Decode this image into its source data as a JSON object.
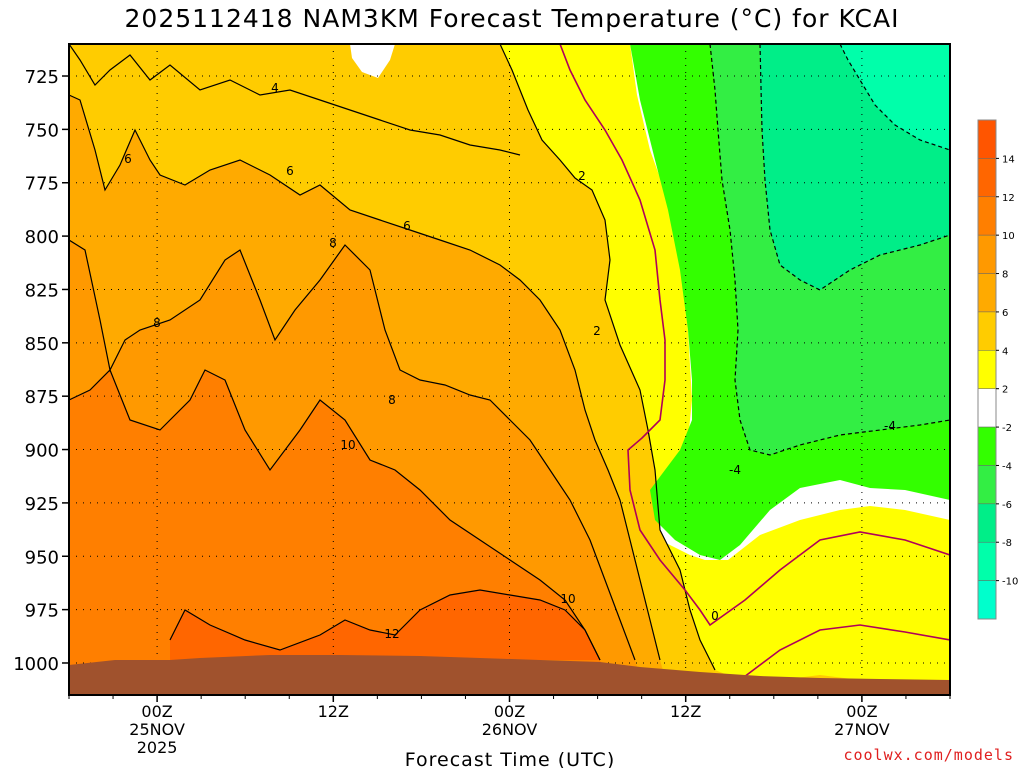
{
  "title": "2025112418 NAM3KM Forecast Temperature (°C) for KCAI",
  "watermark": "coolwx.com/models",
  "colors": {
    "t_ge_12": "#ff6600",
    "t_10_12": "#ff7f00",
    "t_8_10": "#ff9900",
    "t_6_8": "#ffaa00",
    "t_4_6": "#ffcc00",
    "t_2_4": "#ffff00",
    "t_m2_2": "#ffffff",
    "t_m4_m2": "#33ff00",
    "t_m6_m4": "#33ee44",
    "t_m8_m6": "#00ee88",
    "t_m10_m8": "#00ffaa",
    "terrain": "#a0522d",
    "zero_line": "#b0005a"
  },
  "chart_data": {
    "type": "heatmap",
    "title": "2025112418 NAM3KM Forecast Temperature (°C) for KCAI",
    "xlabel": "Forecast Time (UTC)",
    "ylabel": "",
    "y_axis_inverted": true,
    "ylim": [
      1015,
      710
    ],
    "y_ticks": [
      "725",
      "750",
      "775",
      "800",
      "825",
      "850",
      "875",
      "900",
      "925",
      "950",
      "975",
      "1000"
    ],
    "x_ticks": [
      {
        "hour": 24,
        "line1": "00Z",
        "line2": "25NOV",
        "line3": "2025"
      },
      {
        "hour": 36,
        "line1": "12Z",
        "line2": "",
        "line3": ""
      },
      {
        "hour": 48,
        "line1": "00Z",
        "line2": "26NOV",
        "line3": ""
      },
      {
        "hour": 60,
        "line1": "12Z",
        "line2": "",
        "line3": ""
      },
      {
        "hour": 72,
        "line1": "00Z",
        "line2": "27NOV",
        "line3": ""
      }
    ],
    "xlim": [
      18,
      78
    ],
    "grid": true,
    "colorbar": {
      "labels": [
        "14",
        "12",
        "10",
        "8",
        "6",
        "4",
        "2",
        "-2",
        "-4",
        "-6",
        "-8",
        "-10"
      ],
      "colors": [
        "#ff5500",
        "#ff6600",
        "#ff7f00",
        "#ff9900",
        "#ffaa00",
        "#ffcc00",
        "#ffff00",
        "#ffffff",
        "#33ff00",
        "#33ee44",
        "#00ee88",
        "#00ffaa",
        "#00ffcc"
      ]
    },
    "contour_labels": [
      "-4",
      "-4",
      "0",
      "2",
      "2",
      "4",
      "6",
      "6",
      "6",
      "8",
      "8",
      "8",
      "10",
      "10",
      "12"
    ]
  }
}
